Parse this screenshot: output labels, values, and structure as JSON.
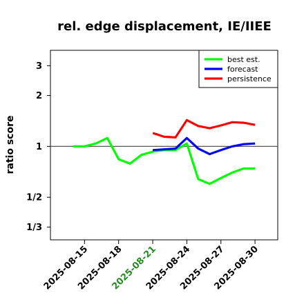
{
  "chart_data": {
    "type": "line",
    "title": "rel. edge displacement, IE/IIEE",
    "ylabel": "ratio score",
    "xlabel": "",
    "y_scale": "log",
    "reference_line": 1,
    "ylim": [
      0.28,
      3.7
    ],
    "yticks": [
      {
        "value": 0.3333,
        "label": "1/3"
      },
      {
        "value": 0.5,
        "label": "1/2"
      },
      {
        "value": 1,
        "label": "1"
      },
      {
        "value": 2,
        "label": "2"
      },
      {
        "value": 3,
        "label": "3"
      }
    ],
    "xlim": [
      "2025-08-12",
      "2025-09-01"
    ],
    "xticks": [
      {
        "date": "2025-08-15",
        "label": "2025-08-15",
        "color": "#000000"
      },
      {
        "date": "2025-08-18",
        "label": "2025-08-18",
        "color": "#000000"
      },
      {
        "date": "2025-08-21",
        "label": "2025-08-21",
        "color": "#228b22"
      },
      {
        "date": "2025-08-24",
        "label": "2025-08-24",
        "color": "#000000"
      },
      {
        "date": "2025-08-27",
        "label": "2025-08-27",
        "color": "#000000"
      },
      {
        "date": "2025-08-30",
        "label": "2025-08-30",
        "color": "#000000"
      }
    ],
    "legend_position": "top-right",
    "series": [
      {
        "name": "best est.",
        "color": "#00ff00",
        "points": [
          {
            "x": "2025-08-14",
            "y": 1.0
          },
          {
            "x": "2025-08-15",
            "y": 1.0
          },
          {
            "x": "2025-08-16",
            "y": 1.04
          },
          {
            "x": "2025-08-17",
            "y": 1.12
          },
          {
            "x": "2025-08-18",
            "y": 0.84
          },
          {
            "x": "2025-08-19",
            "y": 0.79
          },
          {
            "x": "2025-08-20",
            "y": 0.89
          },
          {
            "x": "2025-08-21",
            "y": 0.93
          },
          {
            "x": "2025-08-22",
            "y": 0.95
          },
          {
            "x": "2025-08-23",
            "y": 0.95
          },
          {
            "x": "2025-08-24",
            "y": 1.04
          },
          {
            "x": "2025-08-25",
            "y": 0.64
          },
          {
            "x": "2025-08-26",
            "y": 0.6
          },
          {
            "x": "2025-08-27",
            "y": 0.65
          },
          {
            "x": "2025-08-28",
            "y": 0.7
          },
          {
            "x": "2025-08-29",
            "y": 0.74
          },
          {
            "x": "2025-08-30",
            "y": 0.74
          }
        ]
      },
      {
        "name": "forecast",
        "color": "#0000ff",
        "points": [
          {
            "x": "2025-08-21",
            "y": 0.95
          },
          {
            "x": "2025-08-22",
            "y": 0.96
          },
          {
            "x": "2025-08-23",
            "y": 0.97
          },
          {
            "x": "2025-08-24",
            "y": 1.12
          },
          {
            "x": "2025-08-25",
            "y": 0.97
          },
          {
            "x": "2025-08-26",
            "y": 0.9
          },
          {
            "x": "2025-08-27",
            "y": 0.95
          },
          {
            "x": "2025-08-28",
            "y": 1.0
          },
          {
            "x": "2025-08-29",
            "y": 1.03
          },
          {
            "x": "2025-08-30",
            "y": 1.04
          }
        ]
      },
      {
        "name": "persistence",
        "color": "#ff0000",
        "points": [
          {
            "x": "2025-08-21",
            "y": 1.2
          },
          {
            "x": "2025-08-22",
            "y": 1.14
          },
          {
            "x": "2025-08-23",
            "y": 1.13
          },
          {
            "x": "2025-08-24",
            "y": 1.43
          },
          {
            "x": "2025-08-25",
            "y": 1.32
          },
          {
            "x": "2025-08-26",
            "y": 1.28
          },
          {
            "x": "2025-08-27",
            "y": 1.33
          },
          {
            "x": "2025-08-28",
            "y": 1.39
          },
          {
            "x": "2025-08-29",
            "y": 1.38
          },
          {
            "x": "2025-08-30",
            "y": 1.34
          }
        ]
      }
    ]
  }
}
